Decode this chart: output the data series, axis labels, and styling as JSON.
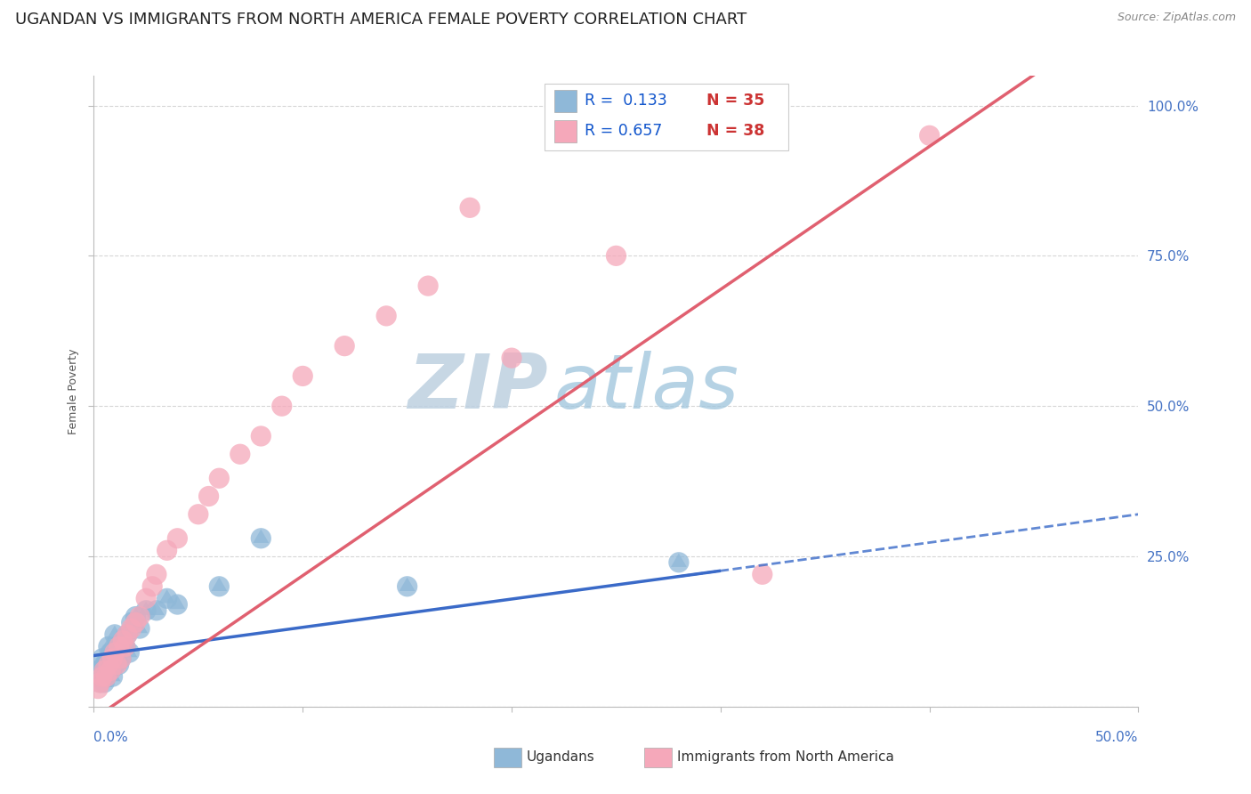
{
  "title": "UGANDAN VS IMMIGRANTS FROM NORTH AMERICA FEMALE POVERTY CORRELATION CHART",
  "source_text": "Source: ZipAtlas.com",
  "ylabel": "Female Poverty",
  "ugandans_x": [
    0.002,
    0.003,
    0.004,
    0.004,
    0.005,
    0.005,
    0.006,
    0.006,
    0.007,
    0.007,
    0.008,
    0.008,
    0.009,
    0.009,
    0.01,
    0.01,
    0.011,
    0.012,
    0.012,
    0.013,
    0.014,
    0.015,
    0.016,
    0.017,
    0.018,
    0.02,
    0.022,
    0.025,
    0.03,
    0.035,
    0.04,
    0.06,
    0.08,
    0.15,
    0.28
  ],
  "ugandans_y": [
    0.06,
    0.04,
    0.08,
    0.05,
    0.07,
    0.04,
    0.06,
    0.05,
    0.1,
    0.07,
    0.09,
    0.06,
    0.08,
    0.05,
    0.12,
    0.07,
    0.09,
    0.1,
    0.07,
    0.08,
    0.11,
    0.1,
    0.12,
    0.09,
    0.14,
    0.15,
    0.13,
    0.16,
    0.16,
    0.18,
    0.17,
    0.2,
    0.28,
    0.2,
    0.24
  ],
  "immigrants_x": [
    0.002,
    0.003,
    0.004,
    0.005,
    0.006,
    0.007,
    0.008,
    0.009,
    0.01,
    0.011,
    0.012,
    0.013,
    0.014,
    0.015,
    0.016,
    0.018,
    0.02,
    0.022,
    0.025,
    0.028,
    0.03,
    0.035,
    0.04,
    0.05,
    0.055,
    0.06,
    0.07,
    0.08,
    0.09,
    0.1,
    0.12,
    0.14,
    0.16,
    0.18,
    0.2,
    0.25,
    0.32,
    0.4
  ],
  "immigrants_y": [
    0.03,
    0.04,
    0.05,
    0.06,
    0.05,
    0.07,
    0.06,
    0.08,
    0.09,
    0.07,
    0.1,
    0.08,
    0.11,
    0.1,
    0.12,
    0.13,
    0.14,
    0.15,
    0.18,
    0.2,
    0.22,
    0.26,
    0.28,
    0.32,
    0.35,
    0.38,
    0.42,
    0.45,
    0.5,
    0.55,
    0.6,
    0.65,
    0.7,
    0.83,
    0.58,
    0.75,
    0.22,
    0.95
  ],
  "ugandans_color": "#8FB8D8",
  "immigrants_color": "#F5A8BA",
  "ugandans_R": 0.133,
  "ugandans_N": 35,
  "immigrants_R": 0.657,
  "immigrants_N": 38,
  "regression_line_color_blue": "#3A6AC8",
  "regression_line_color_pink": "#E06070",
  "ugandan_line_intercept": 0.085,
  "ugandan_line_slope": 0.47,
  "immigrant_line_intercept": -0.02,
  "immigrant_line_slope": 2.38,
  "watermark_text": "ZIPatlas",
  "watermark_color": "#C5D9EC",
  "legend_R_color": "#1155CC",
  "legend_N_color": "#CC3333",
  "background_color": "#FFFFFF",
  "grid_color": "#CCCCCC",
  "title_fontsize": 13,
  "axis_label_fontsize": 9,
  "tick_fontsize": 11,
  "xlim": [
    0,
    0.5
  ],
  "ylim": [
    0,
    1.05
  ]
}
